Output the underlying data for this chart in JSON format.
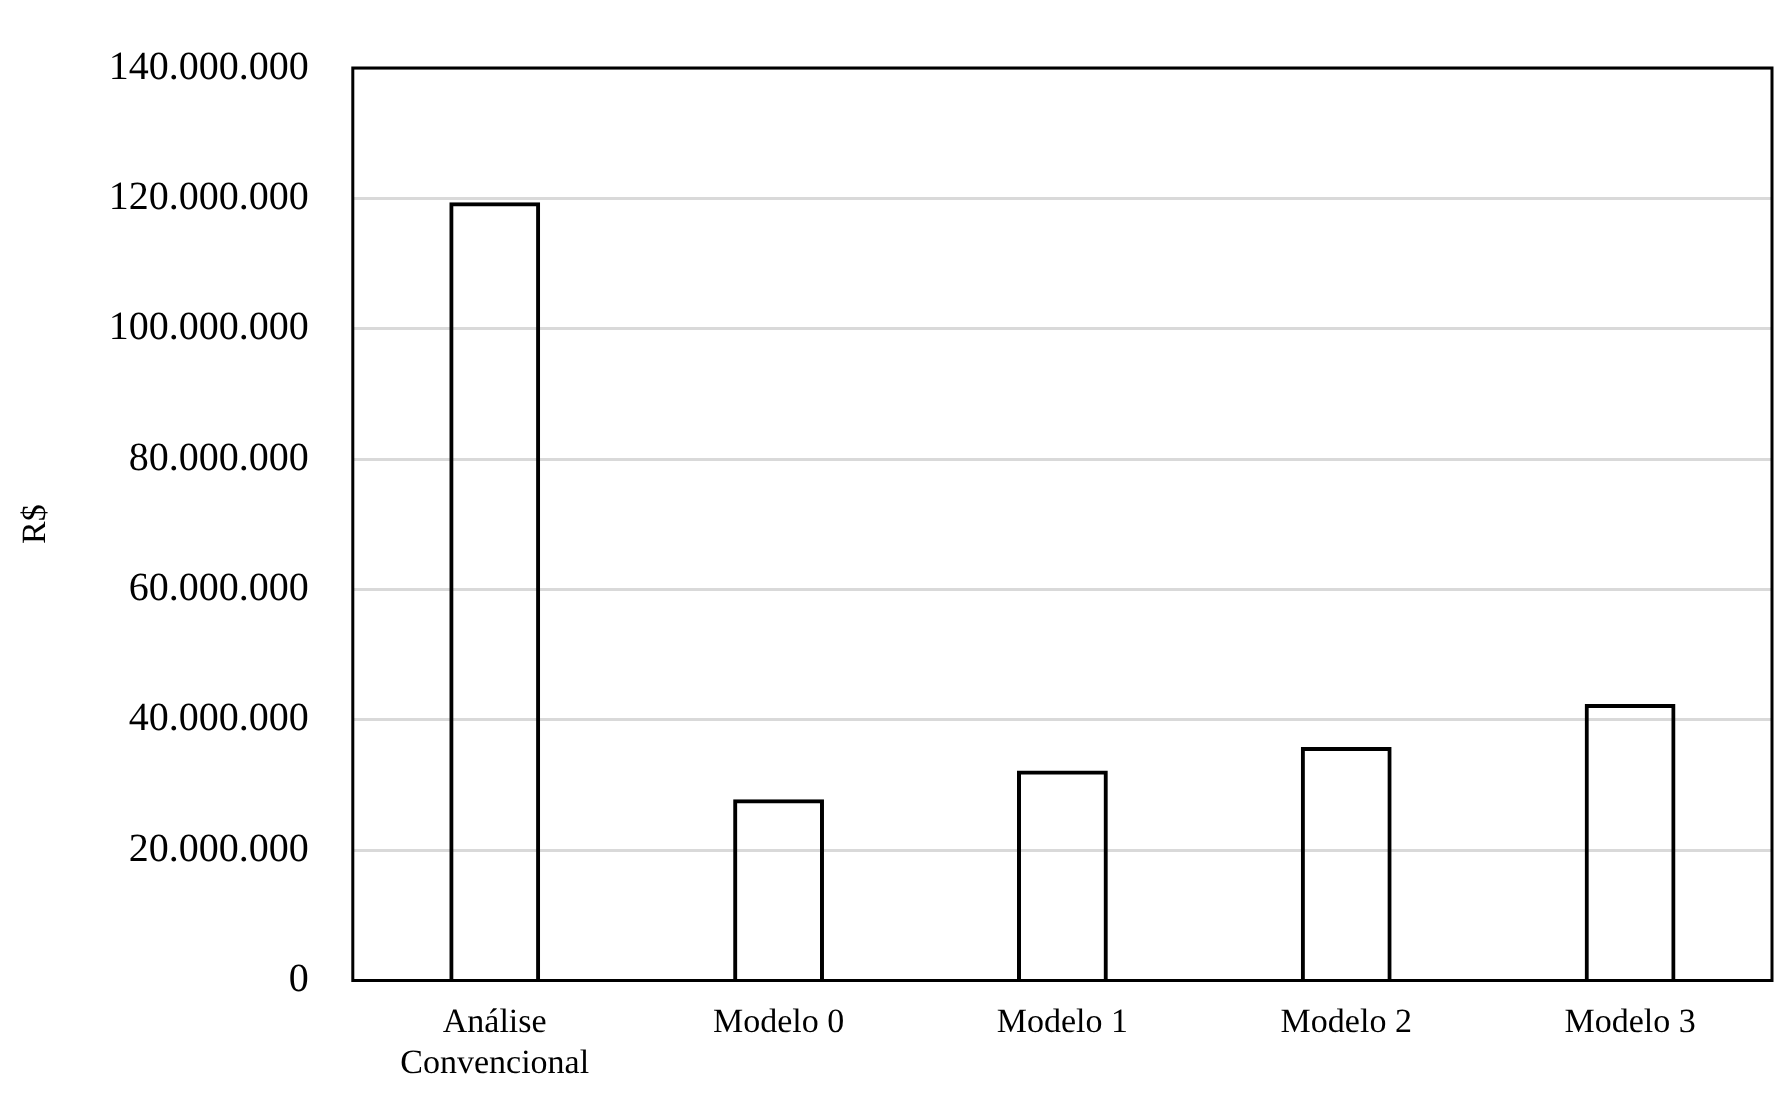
{
  "chart_data": {
    "type": "bar",
    "ylabel": "R$",
    "categories": [
      "Análise Convencional",
      "Modelo 0",
      "Modelo 1",
      "Modelo 2",
      "Modelo 3"
    ],
    "values": [
      119400000,
      27800000,
      32200000,
      35800000,
      42400000
    ],
    "color": "#000000",
    "ylim": [
      0,
      140000000
    ],
    "yticks": [
      0,
      {
        "value": 20000000,
        "label": "20.000.000"
      },
      {
        "value": 40000000,
        "label": "40.000.000"
      },
      {
        "value": 60000000,
        "label": "60.000.000"
      },
      {
        "value": 80000000,
        "label": "80.000.000"
      },
      {
        "value": 100000000,
        "label": "100.000.000"
      },
      {
        "value": 120000000,
        "label": "120.000.000"
      },
      {
        "value": 140000000,
        "label": "140.000.000"
      }
    ],
    "grid": "y",
    "legend": false
  }
}
